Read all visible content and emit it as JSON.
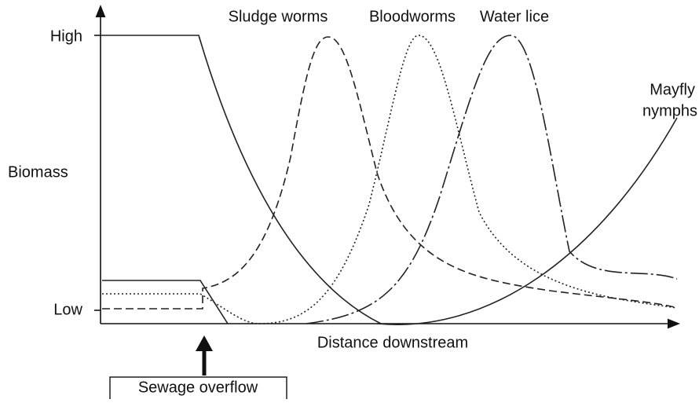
{
  "diagram": {
    "y_axis": {
      "label": "Biomass",
      "high": "High",
      "low": "Low"
    },
    "x_axis": {
      "label": "Distance downstream"
    },
    "curves": [
      "Sludge worms",
      "Bloodworms",
      "Water lice"
    ],
    "mayfly": [
      "Mayfly",
      "nymphs"
    ],
    "event": "Sewage overflow"
  }
}
